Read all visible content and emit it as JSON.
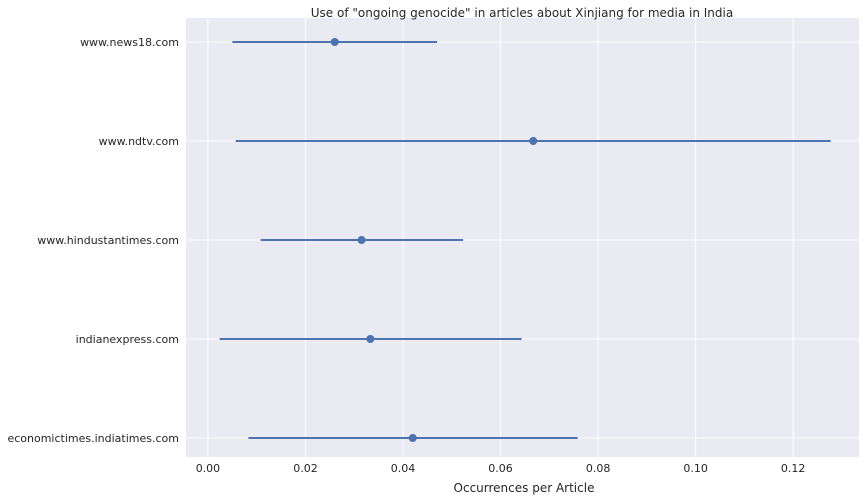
{
  "chart_data": {
    "type": "scatter",
    "title": "Use of \"ongoing genocide\" in articles about Xinjiang for media in India",
    "xlabel": "Occurrences per Article",
    "ylabel": "",
    "xlim": [
      -0.0045,
      0.1335
    ],
    "x_ticks": [
      "0.00",
      "0.02",
      "0.04",
      "0.06",
      "0.08",
      "0.10",
      "0.12"
    ],
    "grid": true,
    "series_color": "#4c72b0",
    "background_color": "#eaeaf2",
    "grid_color": "#ffffff",
    "categories": [
      "www.news18.com",
      "www.ndtv.com",
      "www.hindustantimes.com",
      "indianexpress.com",
      "economictimes.indiatimes.com"
    ],
    "points": [
      {
        "label": "www.news18.com",
        "value": 0.026,
        "ci_low": 0.005,
        "ci_high": 0.047
      },
      {
        "label": "www.ndtv.com",
        "value": 0.0667,
        "ci_low": 0.0057,
        "ci_high": 0.1277
      },
      {
        "label": "www.hindustantimes.com",
        "value": 0.0315,
        "ci_low": 0.0108,
        "ci_high": 0.0523
      },
      {
        "label": "indianexpress.com",
        "value": 0.0333,
        "ci_low": 0.0024,
        "ci_high": 0.0643
      },
      {
        "label": "economictimes.indiatimes.com",
        "value": 0.042,
        "ci_low": 0.0083,
        "ci_high": 0.0758
      }
    ]
  }
}
